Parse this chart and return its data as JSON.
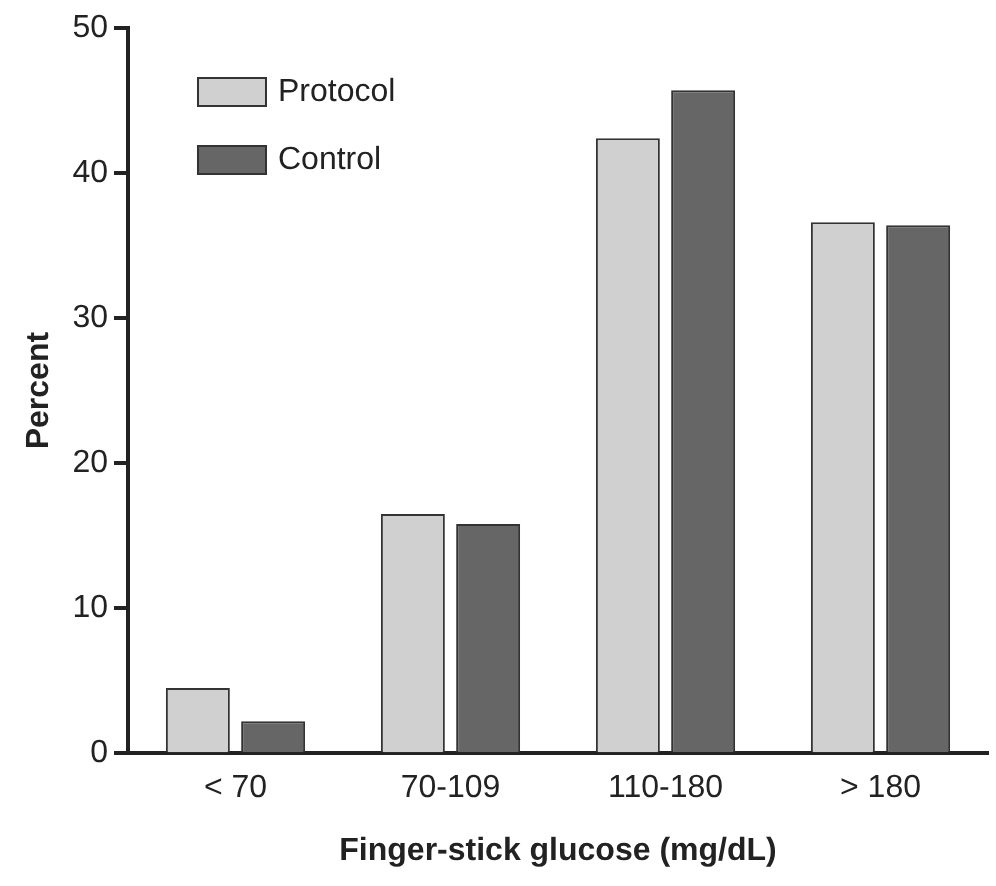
{
  "chart_data": {
    "type": "bar",
    "xlabel": "Finger-stick glucose (mg/dL)",
    "ylabel": "Percent",
    "categories": [
      "< 70",
      "70-109",
      "110-180",
      "> 180"
    ],
    "series": [
      {
        "name": "Protocol",
        "color": "#d0d0d0",
        "values": [
          4.5,
          16.5,
          42.4,
          36.6
        ]
      },
      {
        "name": "Control",
        "color": "#666666",
        "values": [
          2.2,
          15.8,
          45.7,
          36.4
        ]
      }
    ],
    "ylim": [
      0,
      50
    ],
    "yticks": [
      0,
      10,
      20,
      30,
      40,
      50
    ],
    "grid": false,
    "legend": "top left"
  }
}
